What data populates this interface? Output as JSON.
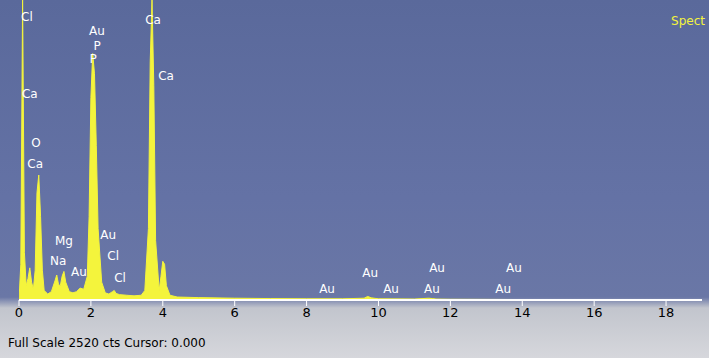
{
  "chart_data": {
    "type": "area",
    "title": "Spect",
    "footer": "Full Scale 2520 cts Cursor: 0.000",
    "x": [
      0,
      0.05,
      0.1,
      0.15,
      0.2,
      0.25,
      0.3,
      0.35,
      0.4,
      0.45,
      0.5,
      0.55,
      0.6,
      0.65,
      0.7,
      0.8,
      0.9,
      1.0,
      1.05,
      1.1,
      1.15,
      1.2,
      1.25,
      1.3,
      1.4,
      1.5,
      1.6,
      1.7,
      1.8,
      1.9,
      1.95,
      2.0,
      2.05,
      2.1,
      2.15,
      2.2,
      2.3,
      2.4,
      2.5,
      2.6,
      2.65,
      2.7,
      2.8,
      3.0,
      3.2,
      3.4,
      3.5,
      3.6,
      3.65,
      3.7,
      3.75,
      3.8,
      3.9,
      3.95,
      4.0,
      4.05,
      4.1,
      4.2,
      4.4,
      5,
      6,
      7,
      8,
      9,
      9.6,
      9.7,
      9.8,
      10,
      11,
      11.4,
      11.5,
      11.6,
      12,
      13,
      14,
      16,
      18,
      19
    ],
    "values": [
      0,
      300,
      2520,
      400,
      120,
      180,
      270,
      150,
      90,
      250,
      900,
      1050,
      700,
      250,
      80,
      50,
      70,
      160,
      210,
      130,
      120,
      200,
      240,
      150,
      70,
      60,
      70,
      100,
      90,
      200,
      700,
      1700,
      2070,
      1900,
      1300,
      600,
      150,
      60,
      50,
      70,
      80,
      55,
      45,
      40,
      35,
      40,
      80,
      600,
      2000,
      2520,
      1800,
      500,
      80,
      200,
      325,
      300,
      120,
      40,
      25,
      20,
      15,
      12,
      10,
      10,
      15,
      30,
      18,
      10,
      8,
      15,
      12,
      8,
      6,
      5,
      4,
      3,
      2,
      2
    ],
    "color": "#f4f43c",
    "xlim": [
      0,
      19
    ],
    "xticks": [
      0,
      2,
      4,
      6,
      8,
      10,
      12,
      14,
      16,
      18
    ],
    "ylim": [
      0,
      2520
    ],
    "tick_labels": "x",
    "grid": false,
    "annotations": [
      {
        "text": "Cl",
        "x": 0.22,
        "y": 2374
      },
      {
        "text": "Ca",
        "x": 0.3,
        "y": 1734
      },
      {
        "text": "O",
        "x": 0.47,
        "y": 1315
      },
      {
        "text": "Ca",
        "x": 0.45,
        "y": 1144
      },
      {
        "text": "Au",
        "x": 2.17,
        "y": 2263
      },
      {
        "text": "P",
        "x": 2.17,
        "y": 2135
      },
      {
        "text": "P",
        "x": 2.06,
        "y": 2024
      },
      {
        "text": "Ca",
        "x": 3.73,
        "y": 2349
      },
      {
        "text": "Ca",
        "x": 4.09,
        "y": 1879
      },
      {
        "text": "Mg",
        "x": 1.25,
        "y": 495
      },
      {
        "text": "Na",
        "x": 1.09,
        "y": 325
      },
      {
        "text": "Au",
        "x": 1.67,
        "y": 239
      },
      {
        "text": "Au",
        "x": 2.48,
        "y": 547
      },
      {
        "text": "Cl",
        "x": 2.62,
        "y": 367
      },
      {
        "text": "Cl",
        "x": 2.81,
        "y": 188
      },
      {
        "text": "Au",
        "x": 9.77,
        "y": 230
      },
      {
        "text": "Au",
        "x": 8.57,
        "y": 94
      },
      {
        "text": "Au",
        "x": 10.35,
        "y": 94
      },
      {
        "text": "Au",
        "x": 11.63,
        "y": 265
      },
      {
        "text": "Au",
        "x": 11.49,
        "y": 94
      },
      {
        "text": "Au",
        "x": 13.77,
        "y": 265
      },
      {
        "text": "Au",
        "x": 13.47,
        "y": 94
      }
    ]
  }
}
